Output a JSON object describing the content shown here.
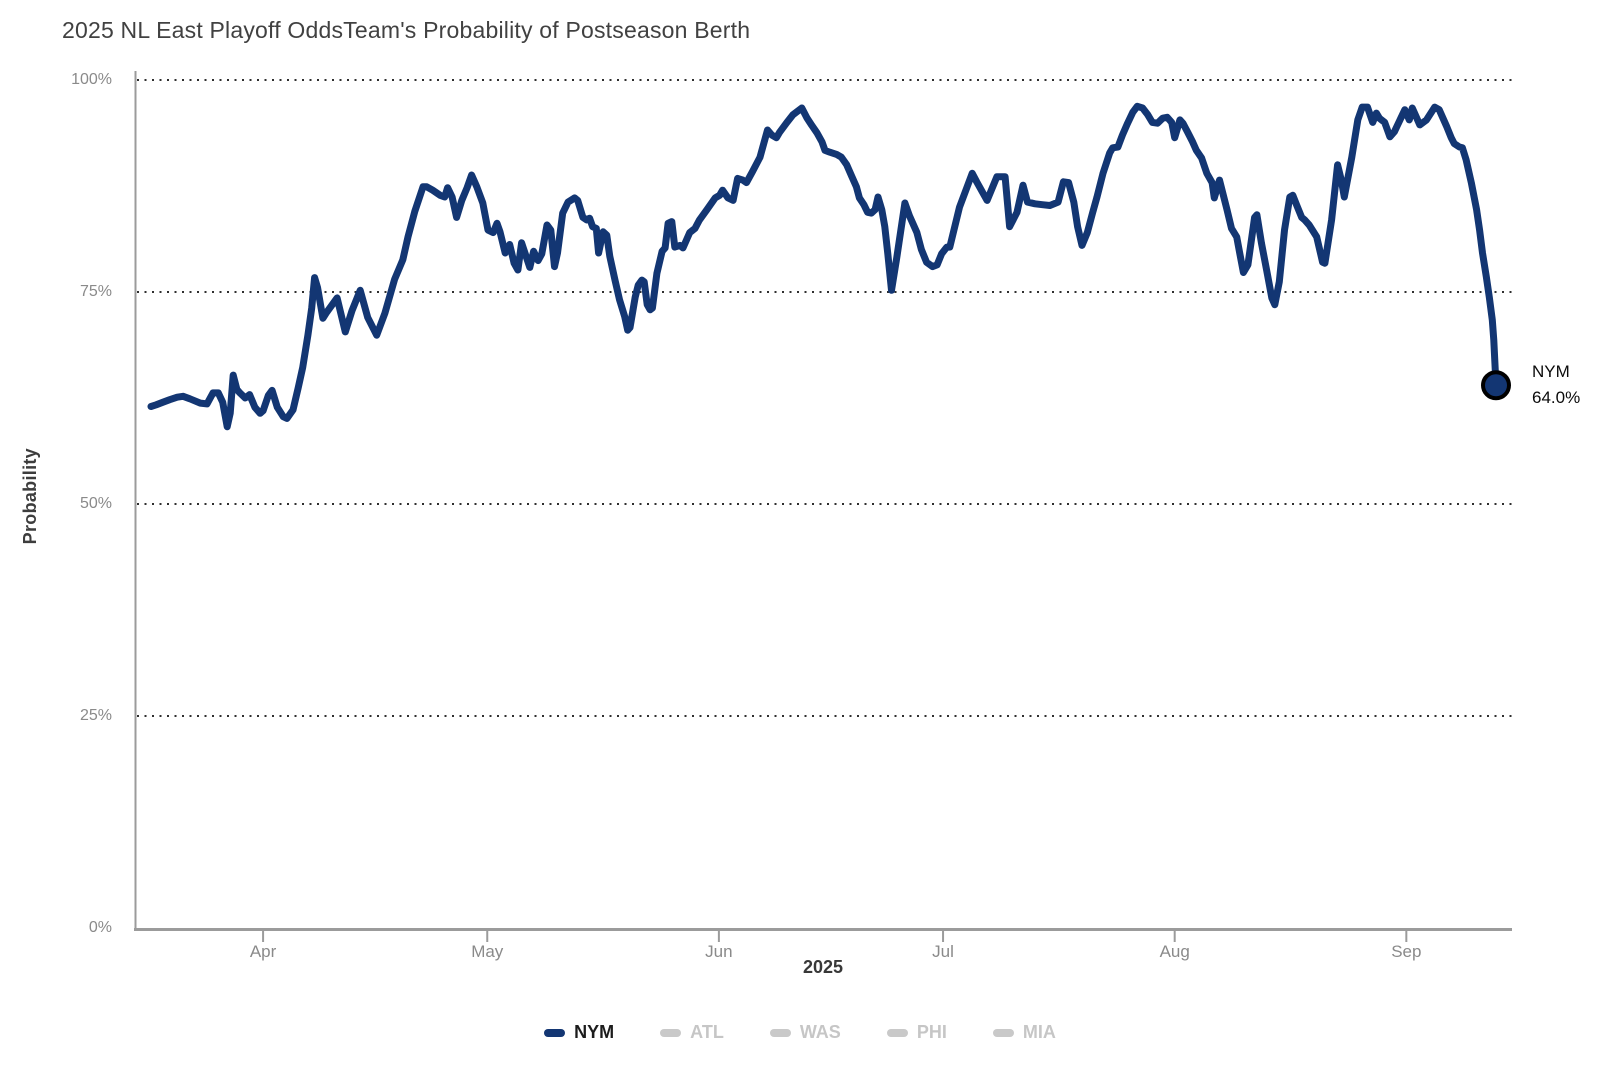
{
  "header": {
    "title_display": "2025 NL East Playoff OddsTeam's Probability of Postseason Berth"
  },
  "y_axis": {
    "label": "Probability",
    "ticks": [
      {
        "label": "100%",
        "value": 100
      },
      {
        "label": "75%",
        "value": 75
      },
      {
        "label": "50%",
        "value": 50
      },
      {
        "label": "25%",
        "value": 25
      },
      {
        "label": "0%",
        "value": 0
      }
    ]
  },
  "x_axis": {
    "label": "2025",
    "ticks": [
      {
        "label": "Apr",
        "day": 15
      },
      {
        "label": "May",
        "day": 45
      },
      {
        "label": "Jun",
        "day": 76
      },
      {
        "label": "Jul",
        "day": 106
      },
      {
        "label": "Aug",
        "day": 137
      },
      {
        "label": "Sep",
        "day": 168
      }
    ]
  },
  "annotation": {
    "team": "NYM",
    "value": "64.0%"
  },
  "legend": {
    "items": [
      {
        "label": "NYM",
        "color": "#133673",
        "text_color": "#1c1c1c",
        "active": true
      },
      {
        "label": "ATL",
        "color": "#c9c9c9",
        "text_color": "#c6c6c6",
        "active": false
      },
      {
        "label": "WAS",
        "color": "#c9c9c9",
        "text_color": "#c6c6c6",
        "active": false
      },
      {
        "label": "PHI",
        "color": "#c9c9c9",
        "text_color": "#c6c6c6",
        "active": false
      },
      {
        "label": "MIA",
        "color": "#c9c9c9",
        "text_color": "#c6c6c6",
        "active": false
      }
    ]
  },
  "colors": {
    "line": "#133673",
    "marker_fill": "#133673",
    "marker_stroke": "#000000",
    "grid_dots": "#2f2f2f",
    "axis": "#9b9b9b",
    "background": "#ffffff"
  },
  "chart_data": {
    "type": "line",
    "title": "2025 NL East Playoff Odds",
    "subtitle": "Team's Probability of Postseason Berth",
    "xlabel": "2025",
    "ylabel": "Probability",
    "ylim": [
      0,
      100
    ],
    "y_gridlines_pct": [
      25,
      50,
      75,
      100
    ],
    "grid_style": "horizontal dotted",
    "legend_position": "bottom",
    "x_unit": "days since series start (mid-March 2025)",
    "x_domain_days": [
      0,
      180
    ],
    "x_month_ticks": [
      {
        "label": "Apr",
        "day": 15
      },
      {
        "label": "May",
        "day": 45
      },
      {
        "label": "Jun",
        "day": 76
      },
      {
        "label": "Jul",
        "day": 106
      },
      {
        "label": "Aug",
        "day": 137
      },
      {
        "label": "Sep",
        "day": 168
      }
    ],
    "inactive_series": [
      "ATL",
      "WAS",
      "PHI",
      "MIA"
    ],
    "series": [
      {
        "name": "NYM",
        "color": "#133673",
        "final_value_label": "64.0%",
        "final_value": 64.0,
        "points": [
          [
            0,
            61.5
          ],
          [
            0.7,
            61.7
          ],
          [
            1.6,
            62.0
          ],
          [
            2.5,
            62.3
          ],
          [
            3.5,
            62.6
          ],
          [
            4.3,
            62.7
          ],
          [
            5.2,
            62.4
          ],
          [
            6.6,
            61.9
          ],
          [
            7.5,
            61.8
          ],
          [
            8.3,
            63.1
          ],
          [
            9.0,
            63.1
          ],
          [
            9.6,
            62.0
          ],
          [
            10.2,
            59.1
          ],
          [
            10.6,
            60.7
          ],
          [
            11.0,
            65.2
          ],
          [
            11.5,
            63.5
          ],
          [
            11.9,
            63.1
          ],
          [
            12.6,
            62.5
          ],
          [
            13.2,
            62.9
          ],
          [
            13.9,
            61.4
          ],
          [
            14.6,
            60.7
          ],
          [
            15.0,
            61.0
          ],
          [
            15.7,
            62.8
          ],
          [
            16.2,
            63.4
          ],
          [
            16.9,
            61.4
          ],
          [
            17.7,
            60.3
          ],
          [
            18.2,
            60.1
          ],
          [
            19.0,
            61.1
          ],
          [
            19.7,
            63.7
          ],
          [
            20.3,
            66.1
          ],
          [
            21.0,
            69.9
          ],
          [
            21.5,
            73.1
          ],
          [
            21.9,
            76.7
          ],
          [
            22.3,
            75.5
          ],
          [
            23.0,
            71.9
          ],
          [
            23.5,
            72.6
          ],
          [
            24.9,
            74.3
          ],
          [
            26.0,
            70.3
          ],
          [
            26.9,
            72.8
          ],
          [
            28.0,
            75.2
          ],
          [
            29.0,
            72.0
          ],
          [
            30.2,
            69.9
          ],
          [
            31.3,
            72.5
          ],
          [
            32.6,
            76.5
          ],
          [
            33.7,
            78.8
          ],
          [
            34.4,
            81.5
          ],
          [
            35.3,
            84.5
          ],
          [
            36.4,
            87.4
          ],
          [
            36.9,
            87.4
          ],
          [
            37.7,
            87.0
          ],
          [
            38.7,
            86.4
          ],
          [
            39.3,
            86.2
          ],
          [
            39.7,
            87.3
          ],
          [
            40.3,
            86.2
          ],
          [
            40.9,
            83.8
          ],
          [
            41.6,
            85.8
          ],
          [
            42.3,
            87.3
          ],
          [
            42.9,
            88.8
          ],
          [
            43.6,
            87.4
          ],
          [
            44.4,
            85.5
          ],
          [
            45.1,
            82.3
          ],
          [
            45.8,
            82.0
          ],
          [
            46.3,
            83.1
          ],
          [
            46.7,
            82.1
          ],
          [
            47.4,
            79.6
          ],
          [
            48.0,
            80.6
          ],
          [
            48.6,
            78.4
          ],
          [
            49.1,
            77.6
          ],
          [
            49.6,
            80.8
          ],
          [
            50.2,
            79.2
          ],
          [
            50.7,
            77.9
          ],
          [
            51.2,
            79.8
          ],
          [
            51.8,
            78.7
          ],
          [
            52.3,
            79.5
          ],
          [
            53.0,
            82.9
          ],
          [
            53.5,
            82.3
          ],
          [
            54.0,
            78.0
          ],
          [
            54.4,
            79.6
          ],
          [
            55.1,
            84.3
          ],
          [
            55.8,
            85.6
          ],
          [
            56.7,
            86.1
          ],
          [
            57.1,
            85.8
          ],
          [
            57.8,
            83.8
          ],
          [
            58.3,
            83.5
          ],
          [
            58.7,
            83.7
          ],
          [
            59.1,
            82.7
          ],
          [
            59.6,
            82.5
          ],
          [
            59.9,
            79.6
          ],
          [
            60.5,
            82.1
          ],
          [
            61.0,
            81.7
          ],
          [
            61.4,
            79.2
          ],
          [
            62.1,
            76.4
          ],
          [
            62.7,
            74.1
          ],
          [
            63.4,
            72.1
          ],
          [
            63.8,
            70.5
          ],
          [
            64.1,
            70.8
          ],
          [
            64.8,
            74.4
          ],
          [
            65.2,
            75.8
          ],
          [
            65.7,
            76.4
          ],
          [
            66.0,
            76.2
          ],
          [
            66.4,
            73.5
          ],
          [
            66.8,
            72.9
          ],
          [
            67.1,
            73.1
          ],
          [
            67.7,
            77.2
          ],
          [
            68.4,
            79.8
          ],
          [
            68.8,
            80.2
          ],
          [
            69.2,
            83.1
          ],
          [
            69.7,
            83.3
          ],
          [
            70.1,
            80.3
          ],
          [
            70.8,
            80.5
          ],
          [
            71.2,
            80.2
          ],
          [
            72.1,
            82.0
          ],
          [
            72.8,
            82.5
          ],
          [
            73.4,
            83.5
          ],
          [
            74.4,
            84.7
          ],
          [
            75.5,
            86.1
          ],
          [
            76.1,
            86.4
          ],
          [
            76.5,
            87.0
          ],
          [
            77.2,
            86.1
          ],
          [
            77.9,
            85.8
          ],
          [
            78.5,
            88.4
          ],
          [
            79.2,
            88.2
          ],
          [
            79.7,
            87.9
          ],
          [
            80.5,
            89.2
          ],
          [
            81.5,
            90.9
          ],
          [
            82.5,
            94.1
          ],
          [
            83.1,
            93.5
          ],
          [
            83.7,
            93.2
          ],
          [
            84.1,
            93.8
          ],
          [
            85.1,
            95.0
          ],
          [
            85.9,
            95.9
          ],
          [
            87.1,
            96.7
          ],
          [
            87.8,
            95.5
          ],
          [
            88.4,
            94.7
          ],
          [
            89.1,
            93.8
          ],
          [
            89.8,
            92.7
          ],
          [
            90.2,
            91.7
          ],
          [
            90.8,
            91.5
          ],
          [
            91.8,
            91.2
          ],
          [
            92.4,
            90.9
          ],
          [
            93.1,
            90.0
          ],
          [
            93.8,
            88.6
          ],
          [
            94.4,
            87.4
          ],
          [
            94.8,
            86.1
          ],
          [
            95.4,
            85.3
          ],
          [
            95.9,
            84.4
          ],
          [
            96.4,
            84.3
          ],
          [
            96.9,
            84.7
          ],
          [
            97.3,
            86.2
          ],
          [
            97.8,
            84.7
          ],
          [
            98.2,
            82.7
          ],
          [
            98.6,
            79.5
          ],
          [
            99.1,
            75.2
          ],
          [
            99.8,
            79.0
          ],
          [
            100.9,
            85.5
          ],
          [
            101.5,
            84.0
          ],
          [
            102.5,
            82.0
          ],
          [
            103.1,
            80.0
          ],
          [
            103.8,
            78.5
          ],
          [
            104.6,
            78.0
          ],
          [
            105.2,
            78.2
          ],
          [
            105.8,
            79.5
          ],
          [
            106.5,
            80.3
          ],
          [
            106.9,
            80.3
          ],
          [
            108.2,
            85.0
          ],
          [
            109.9,
            89.0
          ],
          [
            110.5,
            88.0
          ],
          [
            111.9,
            85.8
          ],
          [
            113.2,
            88.6
          ],
          [
            114.3,
            88.6
          ],
          [
            114.9,
            82.7
          ],
          [
            115.9,
            84.4
          ],
          [
            116.7,
            87.6
          ],
          [
            117.3,
            85.6
          ],
          [
            118.3,
            85.4
          ],
          [
            119.3,
            85.3
          ],
          [
            120.3,
            85.2
          ],
          [
            121.4,
            85.6
          ],
          [
            122.1,
            88.0
          ],
          [
            122.8,
            87.9
          ],
          [
            123.5,
            85.6
          ],
          [
            124.0,
            82.7
          ],
          [
            124.6,
            80.5
          ],
          [
            125.3,
            82.0
          ],
          [
            126.0,
            84.3
          ],
          [
            126.6,
            86.2
          ],
          [
            127.4,
            89.0
          ],
          [
            128.3,
            91.4
          ],
          [
            128.7,
            92.0
          ],
          [
            129.4,
            92.1
          ],
          [
            130.0,
            93.5
          ],
          [
            130.7,
            94.9
          ],
          [
            131.4,
            96.2
          ],
          [
            132.0,
            96.9
          ],
          [
            132.7,
            96.7
          ],
          [
            133.4,
            95.9
          ],
          [
            134.0,
            95.0
          ],
          [
            134.7,
            94.9
          ],
          [
            135.4,
            95.5
          ],
          [
            136.0,
            95.6
          ],
          [
            136.6,
            95.0
          ],
          [
            137.0,
            93.2
          ],
          [
            137.7,
            95.3
          ],
          [
            138.1,
            94.9
          ],
          [
            138.7,
            93.9
          ],
          [
            139.4,
            92.7
          ],
          [
            139.9,
            91.7
          ],
          [
            140.6,
            90.8
          ],
          [
            141.3,
            89.0
          ],
          [
            142.0,
            87.9
          ],
          [
            142.3,
            86.1
          ],
          [
            143.0,
            88.2
          ],
          [
            144.0,
            84.7
          ],
          [
            144.6,
            82.5
          ],
          [
            145.3,
            81.5
          ],
          [
            145.7,
            79.6
          ],
          [
            146.2,
            77.3
          ],
          [
            146.8,
            78.2
          ],
          [
            147.7,
            83.8
          ],
          [
            148.0,
            84.1
          ],
          [
            148.6,
            80.8
          ],
          [
            149.3,
            77.6
          ],
          [
            150.0,
            74.3
          ],
          [
            150.4,
            73.5
          ],
          [
            151.0,
            76.2
          ],
          [
            151.7,
            82.3
          ],
          [
            152.4,
            86.2
          ],
          [
            152.8,
            86.4
          ],
          [
            153.3,
            85.3
          ],
          [
            154.0,
            83.8
          ],
          [
            154.4,
            83.5
          ],
          [
            155.0,
            82.9
          ],
          [
            156.0,
            81.5
          ],
          [
            156.8,
            78.5
          ],
          [
            157.1,
            78.4
          ],
          [
            158.0,
            83.5
          ],
          [
            158.8,
            90.0
          ],
          [
            159.3,
            88.2
          ],
          [
            159.7,
            86.2
          ],
          [
            160.7,
            90.9
          ],
          [
            161.5,
            95.3
          ],
          [
            162.1,
            96.8
          ],
          [
            162.8,
            96.8
          ],
          [
            163.5,
            95.0
          ],
          [
            164.0,
            96.1
          ],
          [
            164.4,
            95.5
          ],
          [
            165.1,
            95.0
          ],
          [
            165.8,
            93.3
          ],
          [
            166.4,
            93.9
          ],
          [
            167.1,
            95.2
          ],
          [
            167.8,
            96.5
          ],
          [
            168.4,
            95.3
          ],
          [
            168.8,
            96.7
          ],
          [
            169.8,
            94.7
          ],
          [
            170.7,
            95.3
          ],
          [
            171.8,
            96.8
          ],
          [
            172.4,
            96.5
          ],
          [
            173.4,
            94.5
          ],
          [
            174.0,
            93.2
          ],
          [
            174.4,
            92.5
          ],
          [
            175.1,
            92.1
          ],
          [
            175.5,
            92.0
          ],
          [
            176.0,
            90.6
          ],
          [
            176.7,
            87.9
          ],
          [
            177.4,
            84.7
          ],
          [
            177.8,
            82.3
          ],
          [
            178.2,
            79.6
          ],
          [
            178.7,
            76.8
          ],
          [
            179.1,
            74.4
          ],
          [
            179.5,
            71.7
          ],
          [
            179.7,
            69.3
          ],
          [
            180,
            64.0
          ]
        ]
      }
    ]
  }
}
